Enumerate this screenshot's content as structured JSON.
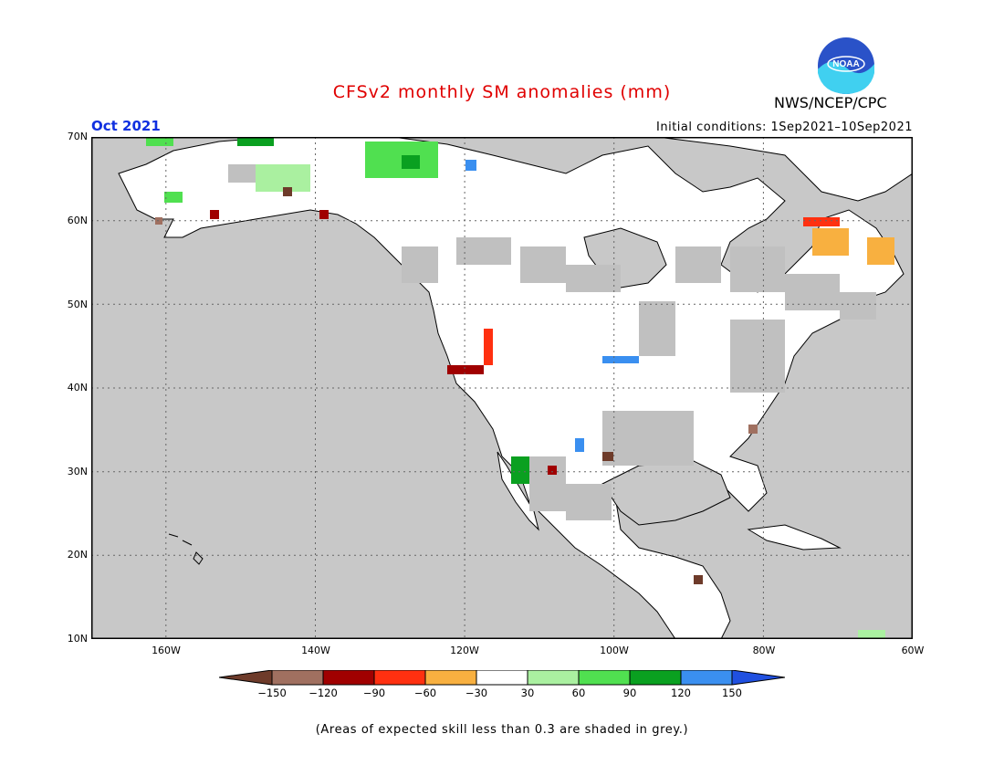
{
  "title": "CFSv2 monthly SM anomalies (mm)",
  "agency": "NWS/NCEP/CPC",
  "logo_text": "NOAA",
  "valid_month": "Oct 2021",
  "initial_conditions": "Initial conditions: 1Sep2021–10Sep2021",
  "latitude_labels": [
    "70N",
    "60N",
    "50N",
    "40N",
    "30N",
    "20N",
    "10N"
  ],
  "longitude_labels": [
    "160W",
    "140W",
    "120W",
    "100W",
    "80W",
    "60W"
  ],
  "legend": {
    "tick_labels": [
      "−150",
      "−120",
      "−90",
      "−60",
      "−30",
      "30",
      "60",
      "90",
      "120",
      "150"
    ],
    "colors": [
      "#6e3b2a",
      "#a07060",
      "#a00000",
      "#ff3010",
      "#f8b040",
      "#ffffff",
      "#aaf0a0",
      "#50e050",
      "#0aa020",
      "#3a8ff0",
      "#2050e0"
    ]
  },
  "note": "(Areas of expected skill less than 0.3 are shaded in grey.)",
  "colors": {
    "title": "#e00000",
    "month": "#1030e0",
    "ocean": "#c8c8c8",
    "skill_grey": "#c0c0c0"
  }
}
